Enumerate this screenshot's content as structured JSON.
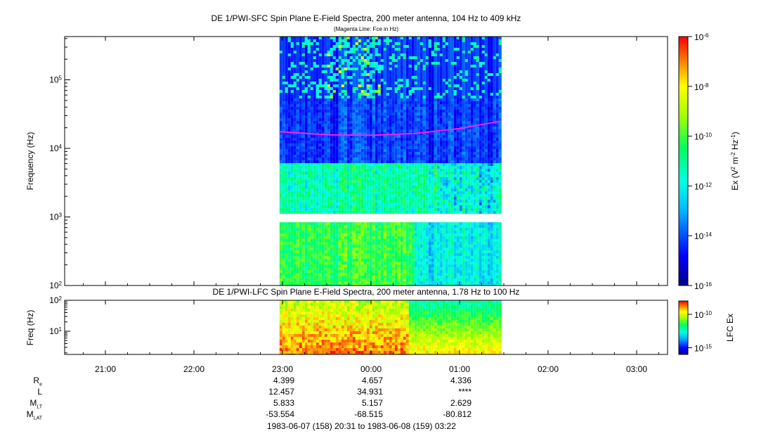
{
  "chart_data": [
    {
      "type": "heatmap",
      "title": "DE 1/PWI-SFC  Spin Plane E-Field Spectra, 200 meter antenna, 104 Hz to 409 kHz",
      "subtitle": "(Magenta Line: Fce in Hz)",
      "ylabel": "Frequency (Hz)",
      "yscale": "log",
      "ylim": [
        100,
        409000
      ],
      "yticks": [
        "10^2",
        "10^3",
        "10^4",
        "10^5"
      ],
      "x_data_range": [
        "1983-06-07 22:58",
        "1983-06-08 01:28"
      ],
      "data_gap": [
        900,
        1050
      ],
      "colorbar": {
        "label": "Ex (V^2 m^-2 Hz^-1)",
        "scale": "log",
        "range": [
          1e-16,
          1e-06
        ],
        "ticks": [
          "10^-6",
          "10^-8",
          "10^-10",
          "10^-12",
          "10^-14",
          "10^-16"
        ]
      },
      "fce_line": {
        "color": "#ff20ff",
        "times": [
          "22:58",
          "23:30",
          "00:00",
          "00:30",
          "01:00",
          "01:28"
        ],
        "values": [
          17500,
          15800,
          15500,
          16500,
          19500,
          25000
        ]
      }
    },
    {
      "type": "heatmap",
      "title": "DE 1/PWI-LFC  Spin Plane E-Field Spectra, 200 meter antenna, 1.78 Hz to 100 Hz",
      "ylabel": "Freq (Hz)",
      "yscale": "log",
      "ylim": [
        1.78,
        100
      ],
      "yticks": [
        "10^1",
        "10^2"
      ],
      "colorbar": {
        "label": "LFC Ex",
        "scale": "log",
        "range": [
          1e-16,
          1e-08
        ],
        "ticks": [
          "10^-10",
          "10^-15"
        ]
      }
    }
  ],
  "x_axis": {
    "tick_labels": [
      "21:00",
      "22:00",
      "23:00",
      "00:00",
      "01:00",
      "02:00",
      "03:00"
    ]
  },
  "ephemeris": {
    "rows": [
      {
        "label": "R",
        "sub": "e",
        "values": [
          "4.399",
          "4.657",
          "4.336"
        ]
      },
      {
        "label": "L",
        "sub": "",
        "values": [
          "12.457",
          "34.931",
          "****"
        ]
      },
      {
        "label": "M",
        "sub": "LT",
        "values": [
          "5.833",
          "5.157",
          "2.629"
        ]
      },
      {
        "label": "M",
        "sub": "LAT",
        "values": [
          "-53.554",
          "-68.515",
          "-80.812"
        ]
      }
    ],
    "time_range": "1983-06-07 (158) 20:31 to 1983-06-08 (159) 03:22"
  }
}
